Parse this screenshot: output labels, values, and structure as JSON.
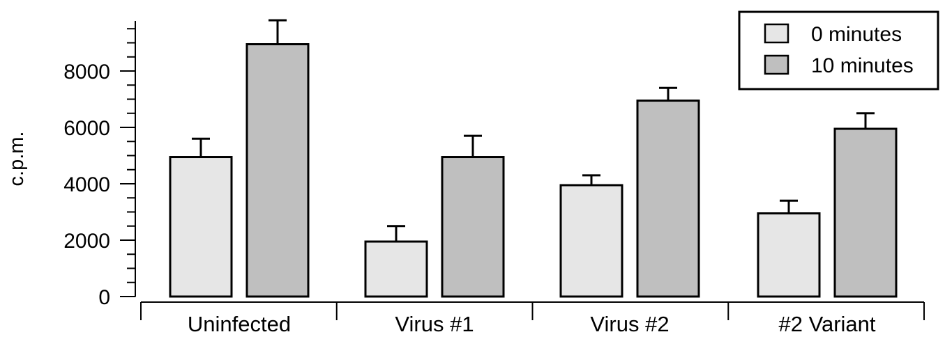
{
  "chart_data": {
    "type": "bar",
    "categories": [
      "Uninfected",
      "Virus #1",
      "Virus #2",
      "#2 Variant"
    ],
    "series": [
      {
        "name": "0 minutes",
        "values": [
          4950,
          1950,
          3950,
          2950
        ],
        "error": [
          650,
          550,
          350,
          450
        ],
        "color": "#e6e6e6"
      },
      {
        "name": "10 minutes",
        "values": [
          8950,
          4950,
          6950,
          5950
        ],
        "error": [
          850,
          750,
          450,
          550
        ],
        "color": "#bfbfbf"
      }
    ],
    "ylabel": "c.p.m.",
    "ylim": [
      0,
      9800
    ],
    "yticks": [
      0,
      2000,
      4000,
      6000,
      8000
    ],
    "ytick_labels": [
      "0",
      "2000",
      "4000",
      "6000",
      "8000"
    ],
    "grid": false,
    "legend": {
      "position": "top-right",
      "entries": [
        "0 minutes",
        "10 minutes"
      ]
    }
  }
}
